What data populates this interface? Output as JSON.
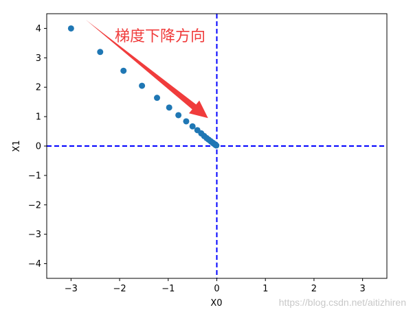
{
  "chart_data": {
    "type": "scatter",
    "xlabel": "X0",
    "ylabel": "X1",
    "xlim": [
      -3.5,
      3.5
    ],
    "ylim": [
      -4.5,
      4.5
    ],
    "xticks": [
      -3,
      -2,
      -1,
      0,
      1,
      2,
      3
    ],
    "xtick_labels": [
      "−3",
      "−2",
      "−1",
      "0",
      "1",
      "2",
      "3"
    ],
    "yticks": [
      -4,
      -3,
      -2,
      -1,
      0,
      1,
      2,
      3,
      4
    ],
    "ytick_labels": [
      "−4",
      "−3",
      "−2",
      "−1",
      "0",
      "1",
      "2",
      "3",
      "4"
    ],
    "grid": false,
    "series": [
      {
        "color": "#1f77b4",
        "points": [
          [
            -3.0,
            4.0
          ],
          [
            -2.4,
            3.2
          ],
          [
            -1.92,
            2.56
          ],
          [
            -1.54,
            2.05
          ],
          [
            -1.23,
            1.64
          ],
          [
            -0.98,
            1.31
          ],
          [
            -0.79,
            1.05
          ],
          [
            -0.63,
            0.84
          ],
          [
            -0.5,
            0.67
          ],
          [
            -0.4,
            0.54
          ],
          [
            -0.32,
            0.43
          ],
          [
            -0.26,
            0.34
          ],
          [
            -0.21,
            0.27
          ],
          [
            -0.17,
            0.22
          ],
          [
            -0.13,
            0.17
          ],
          [
            -0.11,
            0.14
          ],
          [
            -0.08,
            0.11
          ],
          [
            -0.07,
            0.09
          ],
          [
            -0.05,
            0.07
          ],
          [
            -0.04,
            0.06
          ],
          [
            -0.03,
            0.04
          ],
          [
            -0.02,
            0.03
          ],
          [
            -0.01,
            0.02
          ]
        ]
      }
    ],
    "reference_lines": [
      {
        "orientation": "horizontal",
        "y": 0,
        "color": "#0000ff",
        "style": "dashed"
      },
      {
        "orientation": "vertical",
        "x": 0,
        "color": "#0000ff",
        "style": "dashed"
      }
    ],
    "annotation": {
      "text": "梯度下降方向",
      "color": "#f03c3c",
      "arrow_from": [
        -2.7,
        4.3
      ],
      "arrow_to": [
        -0.18,
        0.95
      ]
    }
  },
  "watermark": "https://blog.csdn.net/aitizhiren"
}
